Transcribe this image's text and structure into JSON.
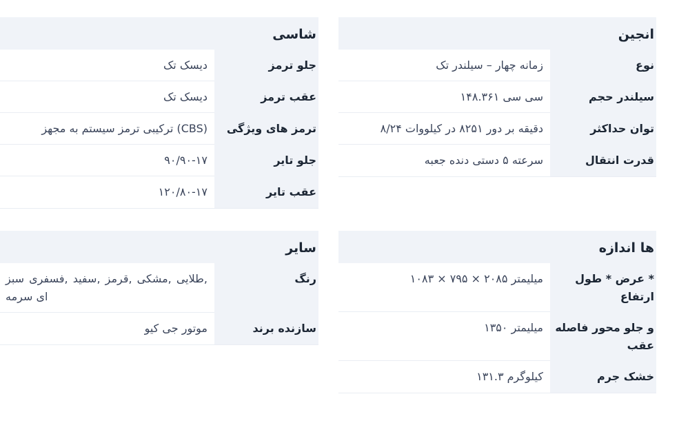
{
  "colors": {
    "label_bg": "#f0f3f8",
    "divider": "#e9edf3",
    "heading_text": "#1c2634",
    "value_text": "#3a445a"
  },
  "panels": {
    "engine": {
      "title": "انجین",
      "rows": [
        {
          "label": "نوع",
          "value": "تک‎ سیلندر‎ –‎ چهار‎ زمانه"
        },
        {
          "label": "حجم‎ سیلندر",
          "value": "۱۴۸.۳۶۱‎ سی‎ سی"
        },
        {
          "label": "حداکثر‎ توان",
          "value": "۸/۲۴‎ کیلووات‎ در‎ ۸۲۵۱‎ دور‎ بر‎ دقیقه"
        },
        {
          "label": "انتقال‎ قدرت",
          "value": "جعبه‎ دنده‎ دستی‎ ۵‎ سرعته"
        }
      ]
    },
    "chassis": {
      "title": "شاسی",
      "rows": [
        {
          "label": "ترمز‎ جلو",
          "value": "تک‎ دیسک"
        },
        {
          "label": "ترمز‎ عقب",
          "value": "تک‎ دیسک"
        },
        {
          "label": "ویژگی‎ های‎ ترمز",
          "value": "مجهز‎ به‎ سیستم‎ ترمز‎ ترکیبی‎ (CBS)"
        },
        {
          "label": "تایر‎ جلو",
          "value": "۹۰/۹۰‎-‎۱۷"
        },
        {
          "label": "تایر‎ عقب",
          "value": "۱۲۰/۸۰‎-‎۱۷"
        }
      ]
    },
    "dimensions": {
      "title": "اندازه‎ ها",
      "rows": [
        {
          "label": "طول‎ *‎ عرض‎ *‎ ارتفاع",
          "value": "۱۰۸۳‎ ×‎ ۷۹۵‎ ×‎ ۲۰۸۵‎ میلیمتر"
        },
        {
          "label": "فاصله‎ محور‎ جلو‎ و‎ عقب",
          "value": "۱۳۵۰‎ میلیمتر"
        },
        {
          "label": "جرم‎ خشک",
          "value": "۱۳۱.۳‎ کیلوگرم"
        }
      ]
    },
    "other": {
      "title": "سایر",
      "rows": [
        {
          "label": "رنگ",
          "value": "سبز‎ فسفری,‎ سفید,‎ قرمز,‎ مشکی,‎ طلایی,‎ سرمه‎ ای"
        },
        {
          "label": "برند‎ سازنده",
          "value": "کیو‎ جی‎ موتور"
        }
      ]
    }
  }
}
